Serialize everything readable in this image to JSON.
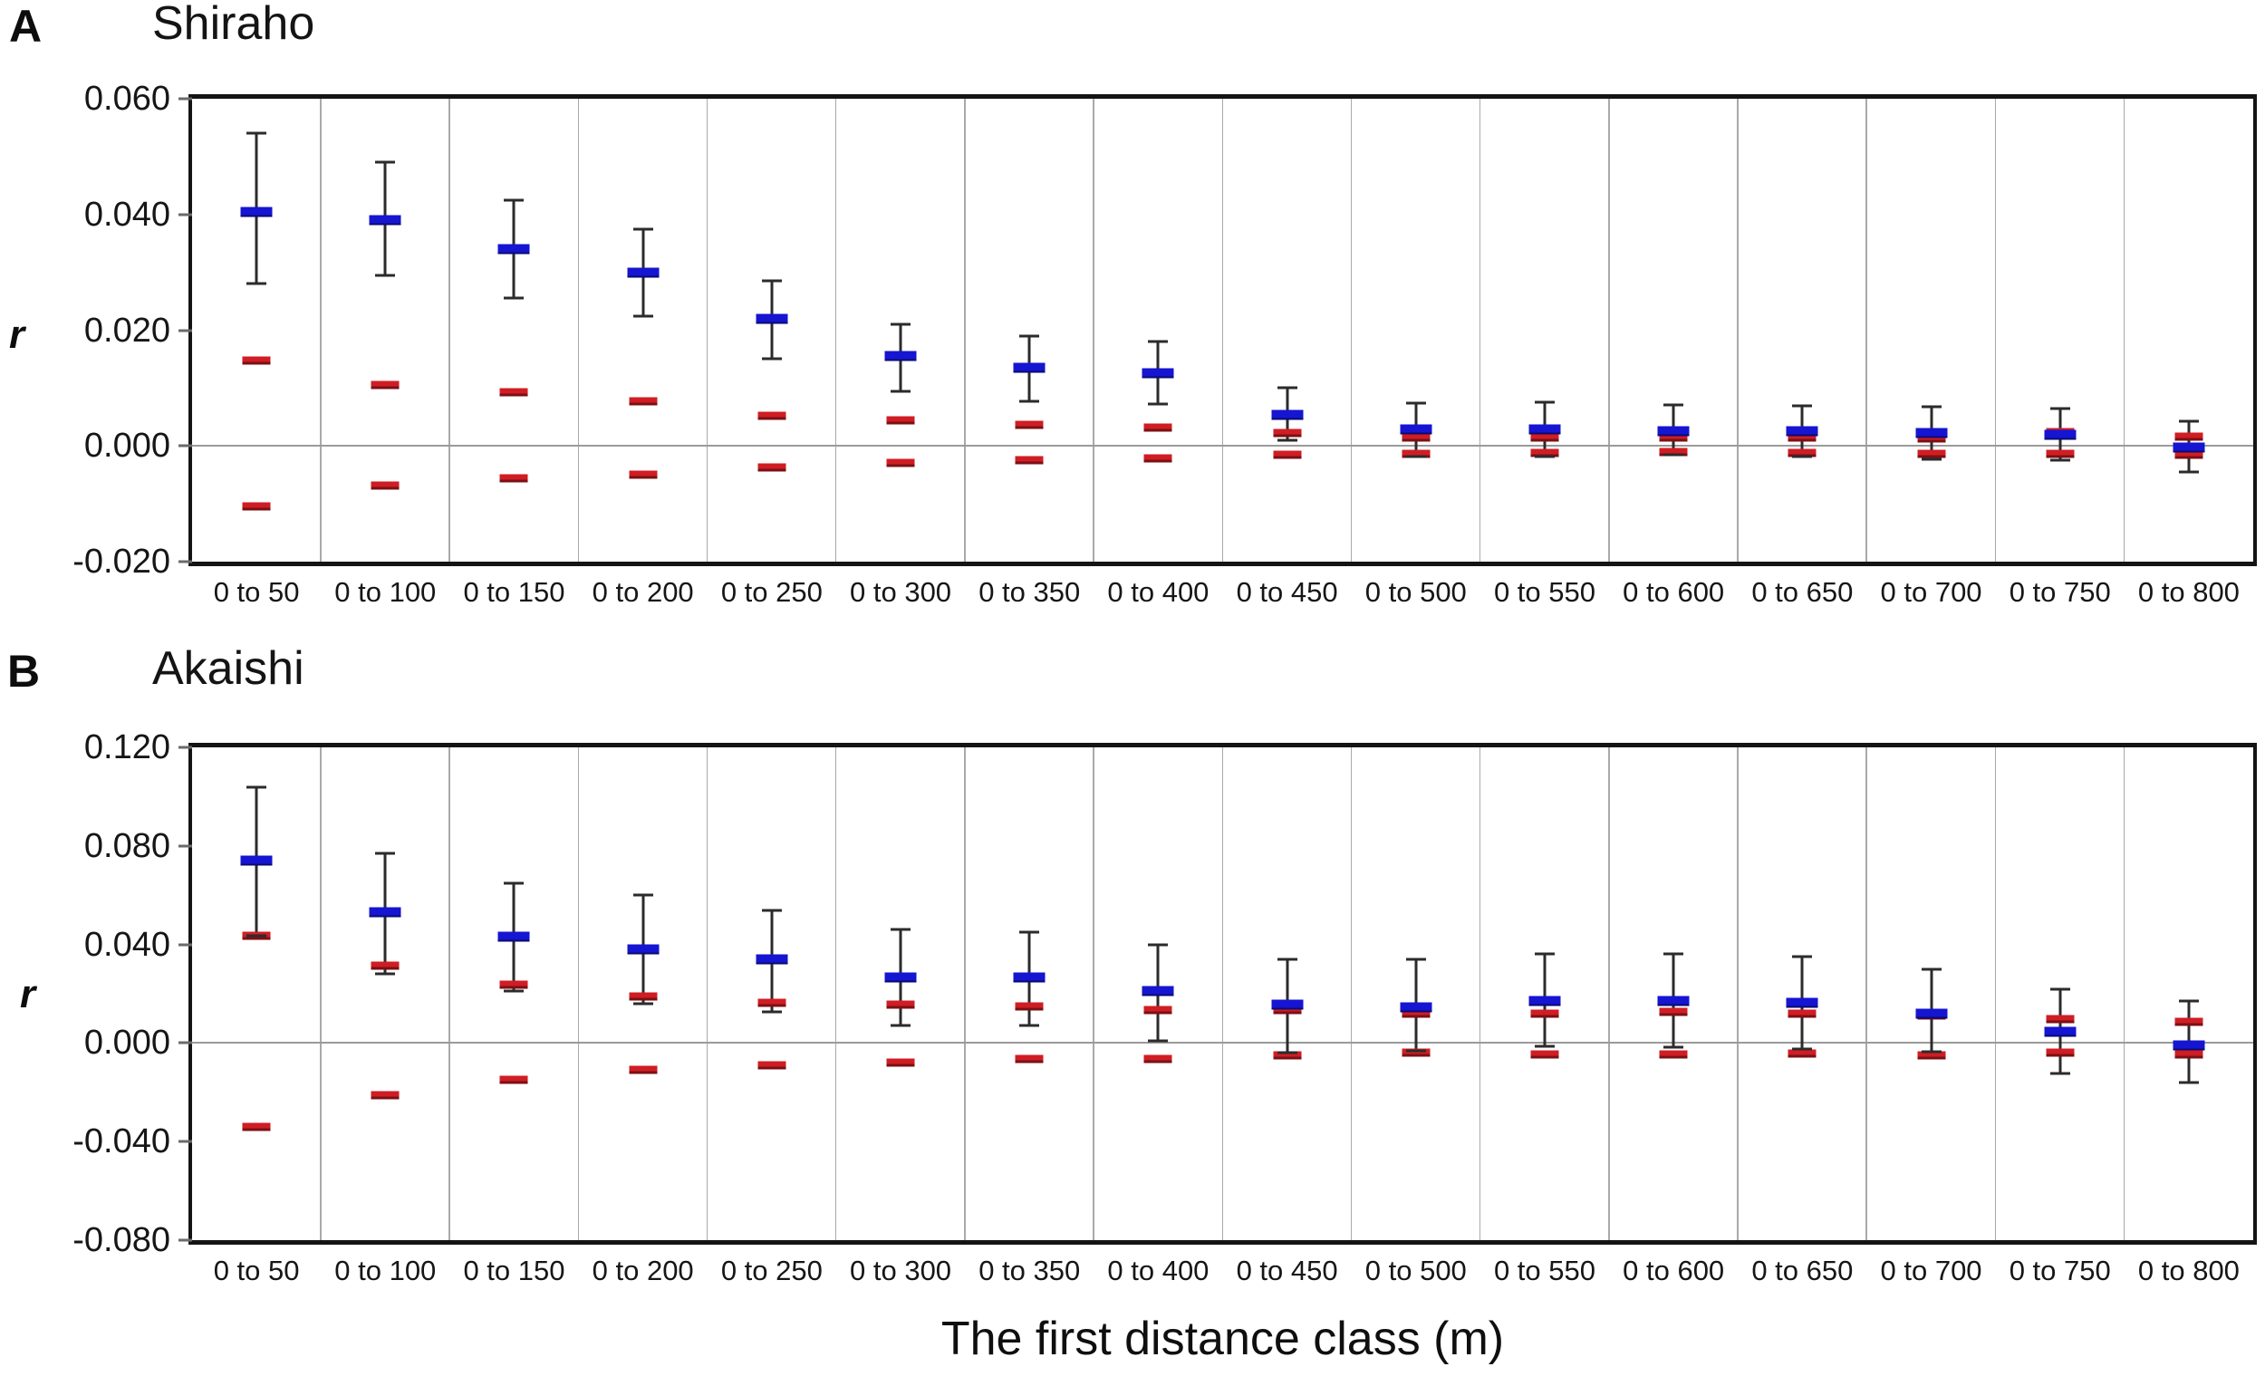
{
  "figure": {
    "x_axis_title": "The first distance class (m)",
    "colors": {
      "observed_marker_blue": "#1515d2",
      "envelope_marker_red": "#d01d24",
      "whisker": "#2b2b2b",
      "gridline": "#a9a9a9",
      "zero_line": "#9a9a9a",
      "frame": "#141414"
    },
    "panels": [
      {
        "label": "A",
        "title": "Shiraho",
        "y_axis_label": "r"
      },
      {
        "label": "B",
        "title": "Akaishi",
        "y_axis_label": "r"
      }
    ]
  },
  "chart_data": [
    {
      "type": "scatter",
      "panel": "A",
      "title": "Shiraho",
      "xlabel": "The first distance class (m)",
      "ylabel": "r",
      "ylim": [
        -0.02,
        0.06
      ],
      "grid": "vertical category separators + zero line only",
      "legend": "none",
      "yticks": [
        {
          "label": "0.060",
          "value": 0.06
        },
        {
          "label": "0.040",
          "value": 0.04
        },
        {
          "label": "0.020",
          "value": 0.02
        },
        {
          "label": "0.000",
          "value": 0.0
        },
        {
          "label": "-0.020",
          "value": -0.02
        }
      ],
      "categories": [
        "0 to 50",
        "0 to 100",
        "0 to 150",
        "0 to 200",
        "0 to 250",
        "0 to 300",
        "0 to 350",
        "0 to 400",
        "0 to 450",
        "0 to 500",
        "0 to 550",
        "0 to 600",
        "0 to 650",
        "0 to 700",
        "0 to 750",
        "0 to 800"
      ],
      "series": [
        {
          "name": "observed_r_blue_bar",
          "values": [
            0.0405,
            0.039,
            0.034,
            0.03,
            0.022,
            0.0155,
            0.0135,
            0.0125,
            0.0054,
            0.0028,
            0.0028,
            0.0026,
            0.0025,
            0.0022,
            0.0019,
            -0.0002
          ]
        },
        {
          "name": "whisker_top",
          "values": [
            0.054,
            0.049,
            0.0425,
            0.0375,
            0.0285,
            0.021,
            0.019,
            0.018,
            0.01,
            0.0074,
            0.0076,
            0.0071,
            0.007,
            0.0067,
            0.0064,
            0.0043
          ]
        },
        {
          "name": "whisker_bottom",
          "values": [
            0.028,
            0.0295,
            0.0255,
            0.0225,
            0.015,
            0.0095,
            0.0077,
            0.0073,
            0.001,
            -0.0019,
            -0.0018,
            -0.0016,
            -0.0018,
            -0.0023,
            -0.0025,
            -0.0045
          ]
        },
        {
          "name": "red_dash_upper",
          "values": [
            0.0148,
            0.0105,
            0.0092,
            0.0077,
            0.0052,
            0.0044,
            0.0036,
            0.0031,
            0.0023,
            0.0015,
            0.0015,
            0.0015,
            0.0014,
            0.0013,
            0.0024,
            0.0016
          ]
        },
        {
          "name": "red_dash_lower",
          "values": [
            -0.0105,
            -0.0068,
            -0.0056,
            -0.005,
            -0.0037,
            -0.003,
            -0.0025,
            -0.0021,
            -0.0015,
            -0.0013,
            -0.0012,
            -0.0011,
            -0.0012,
            -0.0013,
            -0.0014,
            -0.0015
          ]
        }
      ]
    },
    {
      "type": "scatter",
      "panel": "B",
      "title": "Akaishi",
      "xlabel": "The first distance class (m)",
      "ylabel": "r",
      "ylim": [
        -0.08,
        0.12
      ],
      "grid": "vertical category separators + zero line only",
      "legend": "none",
      "yticks": [
        {
          "label": "0.120",
          "value": 0.12
        },
        {
          "label": "0.080",
          "value": 0.08
        },
        {
          "label": "0.040",
          "value": 0.04
        },
        {
          "label": "0.000",
          "value": 0.0
        },
        {
          "label": "-0.040",
          "value": -0.04
        },
        {
          "label": "-0.080",
          "value": -0.08
        }
      ],
      "categories": [
        "0 to 50",
        "0 to 100",
        "0 to 150",
        "0 to 200",
        "0 to 250",
        "0 to 300",
        "0 to 350",
        "0 to 400",
        "0 to 450",
        "0 to 500",
        "0 to 550",
        "0 to 600",
        "0 to 650",
        "0 to 700",
        "0 to 750",
        "0 to 800"
      ],
      "series": [
        {
          "name": "observed_r_blue_bar",
          "values": [
            0.074,
            0.053,
            0.043,
            0.038,
            0.034,
            0.0265,
            0.0265,
            0.021,
            0.0155,
            0.0145,
            0.017,
            0.017,
            0.0165,
            0.012,
            0.0045,
            -0.001
          ]
        },
        {
          "name": "whisker_top",
          "values": [
            0.104,
            0.077,
            0.065,
            0.06,
            0.054,
            0.046,
            0.045,
            0.04,
            0.034,
            0.034,
            0.036,
            0.036,
            0.035,
            0.03,
            0.022,
            0.017
          ]
        },
        {
          "name": "whisker_bottom",
          "values": [
            0.0435,
            0.028,
            0.021,
            0.016,
            0.0125,
            0.007,
            0.007,
            0.001,
            -0.004,
            -0.003,
            -0.0015,
            -0.0018,
            -0.0026,
            -0.0037,
            -0.0125,
            -0.016
          ]
        },
        {
          "name": "red_dash_upper",
          "values": [
            0.0435,
            0.0315,
            0.0235,
            0.019,
            0.0165,
            0.0155,
            0.015,
            0.0135,
            0.0135,
            0.012,
            0.012,
            0.0125,
            0.0118,
            0.011,
            0.0096,
            0.0085
          ]
        },
        {
          "name": "red_dash_lower",
          "values": [
            -0.034,
            -0.021,
            -0.015,
            -0.011,
            -0.009,
            -0.008,
            -0.0065,
            -0.0065,
            -0.005,
            -0.004,
            -0.0045,
            -0.0045,
            -0.0044,
            -0.005,
            -0.004,
            -0.0045
          ]
        }
      ]
    }
  ]
}
